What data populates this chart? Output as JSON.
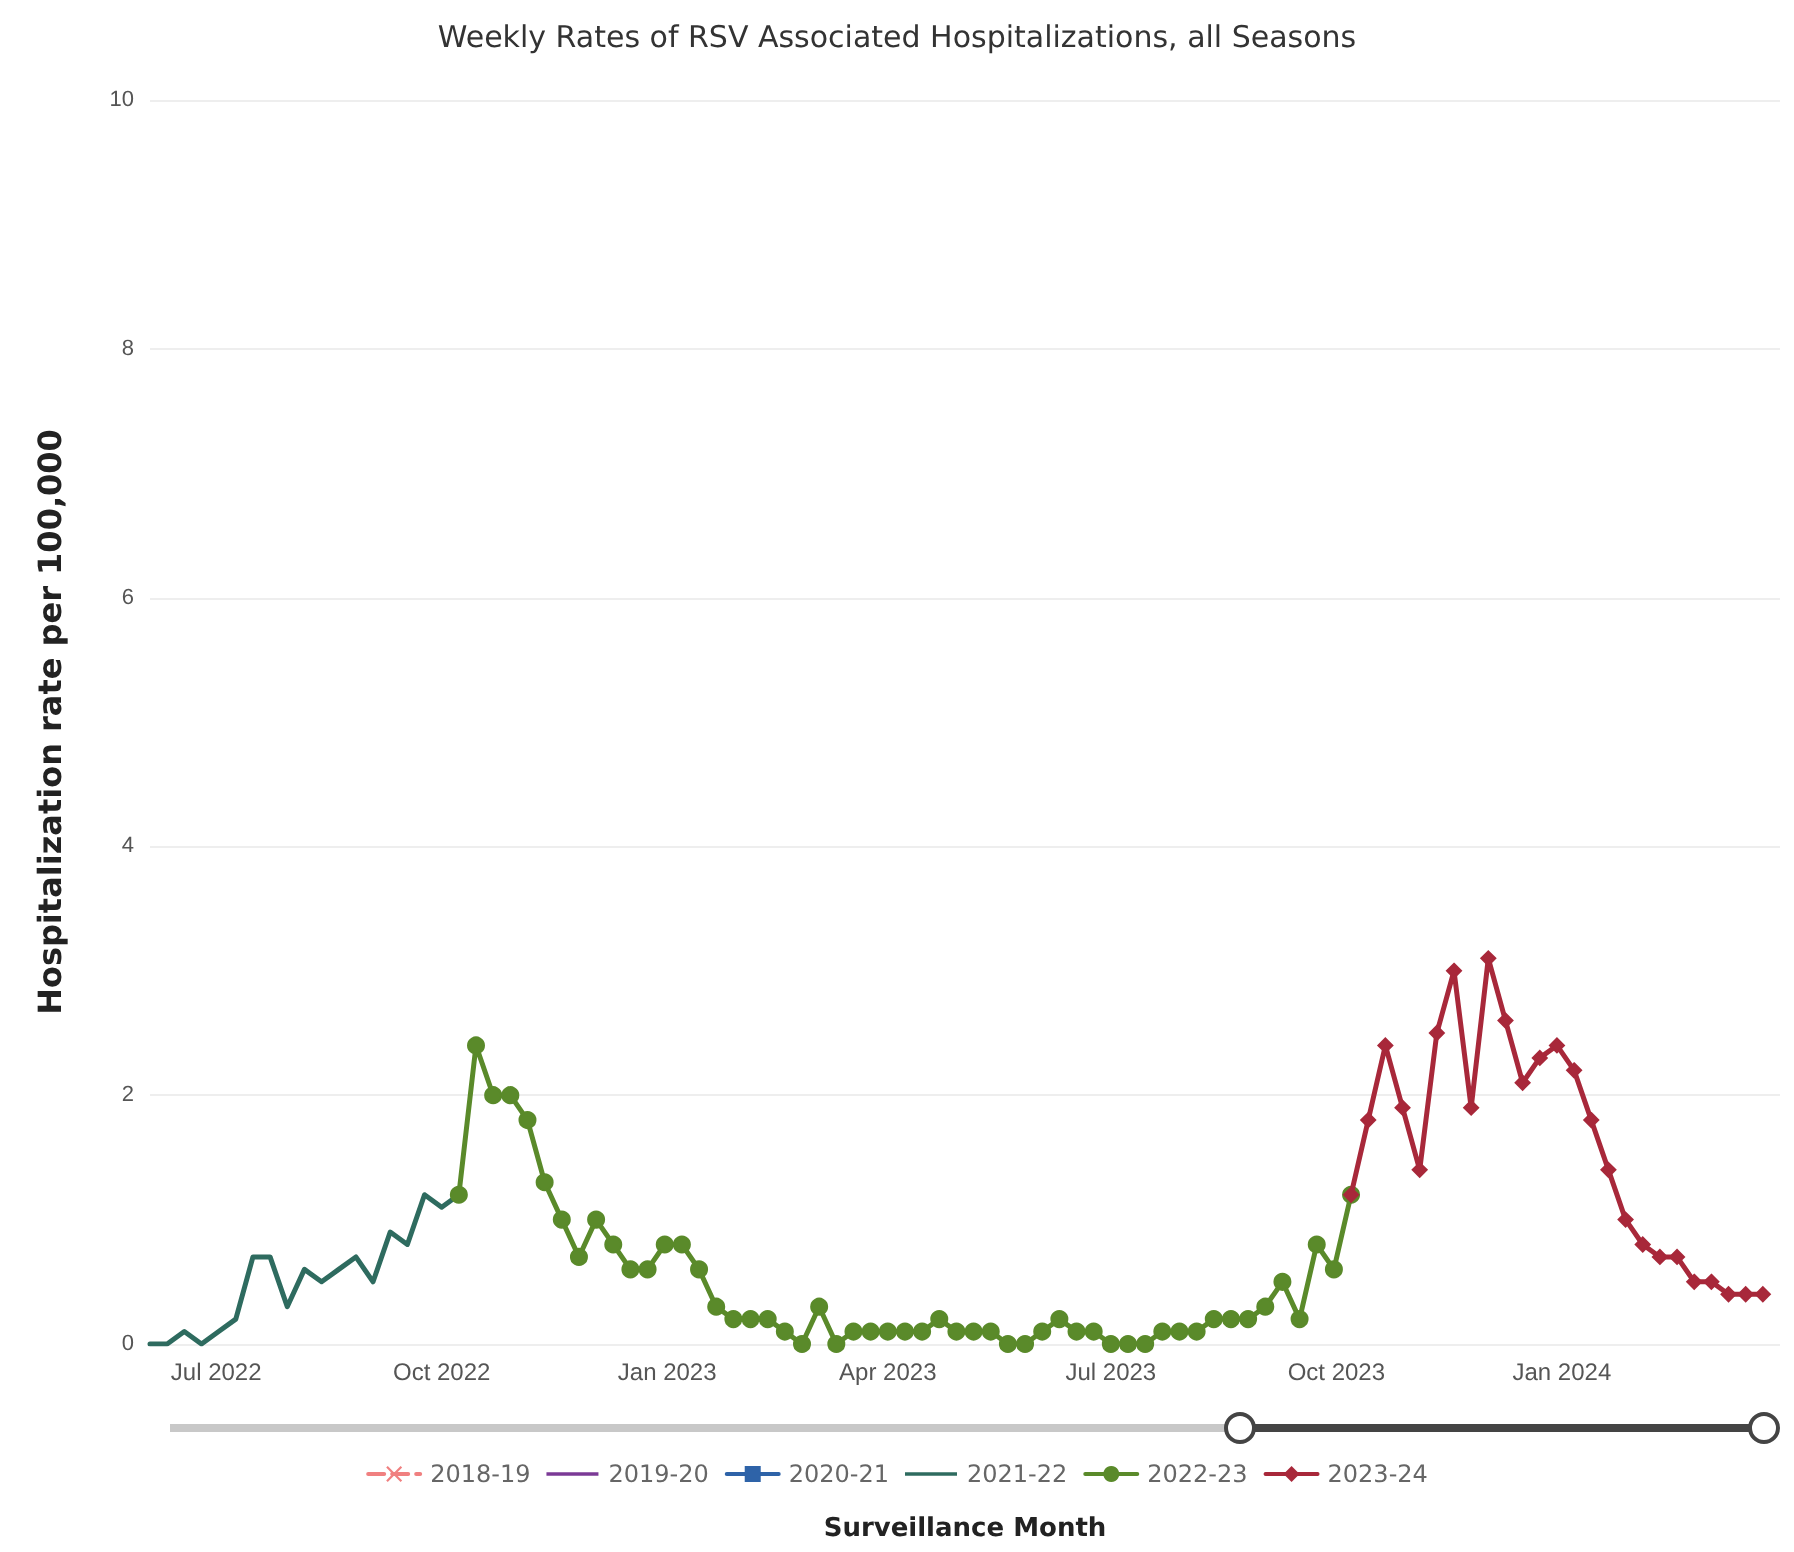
{
  "chart_data": {
    "type": "line",
    "title": "Weekly Rates of RSV Associated Hospitalizations, all Seasons",
    "xlabel": "Surveillance Month",
    "ylabel": "Hospitalization rate per 100,000",
    "xlim": [
      "2022-06-04",
      "2024-03-30"
    ],
    "xticks": [
      {
        "value": "2022-07-01",
        "label": "Jul 2022"
      },
      {
        "value": "2022-10-01",
        "label": "Oct 2022"
      },
      {
        "value": "2023-01-01",
        "label": "Jan 2023"
      },
      {
        "value": "2023-04-01",
        "label": "Apr 2023"
      },
      {
        "value": "2023-07-01",
        "label": "Jul 2023"
      },
      {
        "value": "2023-10-01",
        "label": "Oct 2023"
      },
      {
        "value": "2024-01-01",
        "label": "Jan 2024"
      }
    ],
    "ylim": [
      0,
      10
    ],
    "yticks": [
      0,
      2,
      4,
      6,
      8,
      10
    ],
    "grid": "y",
    "legend": "bottom",
    "series": [
      {
        "name": "2018-19",
        "color": "#f08080",
        "marker": "cross",
        "line_style": "dashed"
      },
      {
        "name": "2019-20",
        "color": "#7b3a96",
        "marker": "none",
        "line_style": "dotted"
      },
      {
        "name": "2020-21",
        "color": "#2e63a8",
        "marker": "square",
        "line_style": "solid"
      },
      {
        "name": "2021-22",
        "color": "#2e6b5f",
        "marker": "none",
        "line_style": "solid",
        "x": [
          "2022-06-04",
          "2022-06-11",
          "2022-06-18",
          "2022-06-25",
          "2022-07-02",
          "2022-07-09",
          "2022-07-16",
          "2022-07-23",
          "2022-07-30",
          "2022-08-06",
          "2022-08-13",
          "2022-08-20",
          "2022-08-27",
          "2022-09-03",
          "2022-09-10",
          "2022-09-17",
          "2022-09-24",
          "2022-10-01",
          "2022-10-08"
        ],
        "values": [
          0,
          0,
          0.1,
          0,
          0.1,
          0.2,
          0.7,
          0.7,
          0.3,
          0.6,
          0.5,
          0.6,
          0.7,
          0.5,
          0.9,
          0.8,
          1.2,
          1.1,
          1.2
        ]
      },
      {
        "name": "2022-23",
        "color": "#5a8a2a",
        "marker": "circle",
        "line_style": "solid",
        "x": [
          "2022-10-08",
          "2022-10-15",
          "2022-10-22",
          "2022-10-29",
          "2022-11-05",
          "2022-11-12",
          "2022-11-19",
          "2022-11-26",
          "2022-12-03",
          "2022-12-10",
          "2022-12-17",
          "2022-12-24",
          "2022-12-31",
          "2023-01-07",
          "2023-01-14",
          "2023-01-21",
          "2023-01-28",
          "2023-02-04",
          "2023-02-11",
          "2023-02-18",
          "2023-02-25",
          "2023-03-04",
          "2023-03-11",
          "2023-03-18",
          "2023-03-25",
          "2023-04-01",
          "2023-04-08",
          "2023-04-15",
          "2023-04-22",
          "2023-04-29",
          "2023-05-06",
          "2023-05-13",
          "2023-05-20",
          "2023-05-27",
          "2023-06-03",
          "2023-06-10",
          "2023-06-17",
          "2023-06-24",
          "2023-07-01",
          "2023-07-08",
          "2023-07-15",
          "2023-07-22",
          "2023-07-29",
          "2023-08-05",
          "2023-08-12",
          "2023-08-19",
          "2023-08-26",
          "2023-09-02",
          "2023-09-09",
          "2023-09-16",
          "2023-09-23",
          "2023-09-30",
          "2023-10-07"
        ],
        "values": [
          1.2,
          2.4,
          2.0,
          2.0,
          1.8,
          1.3,
          1.0,
          0.7,
          1.0,
          0.8,
          0.6,
          0.6,
          0.8,
          0.8,
          0.6,
          0.3,
          0.2,
          0.2,
          0.2,
          0.1,
          0,
          0.3,
          0,
          0.1,
          0.1,
          0.1,
          0.1,
          0.1,
          0.2,
          0.1,
          0.1,
          0.1,
          0,
          0,
          0.1,
          0.2,
          0.1,
          0.1,
          0,
          0,
          0,
          0.1,
          0.1,
          0.1,
          0.2,
          0.2,
          0.2,
          0.3,
          0.5,
          0.2,
          0.8,
          0.6,
          1.2
        ]
      },
      {
        "name": "2023-24",
        "color": "#a8283a",
        "marker": "diamond",
        "line_style": "solid",
        "x": [
          "2023-10-07",
          "2023-10-14",
          "2023-10-21",
          "2023-10-28",
          "2023-11-04",
          "2023-11-11",
          "2023-11-18",
          "2023-11-25",
          "2023-12-02",
          "2023-12-09",
          "2023-12-16",
          "2023-12-23",
          "2023-12-30",
          "2024-01-06",
          "2024-01-13",
          "2024-01-20",
          "2024-01-27",
          "2024-02-03",
          "2024-02-10",
          "2024-02-17",
          "2024-02-24",
          "2024-03-02",
          "2024-03-09",
          "2024-03-16",
          "2024-03-23"
        ],
        "values": [
          1.2,
          1.8,
          2.4,
          1.9,
          1.4,
          2.5,
          3.0,
          1.9,
          3.1,
          2.6,
          2.1,
          2.3,
          2.4,
          2.2,
          1.8,
          1.4,
          1.0,
          0.8,
          0.7,
          0.7,
          0.5,
          0.5,
          0.4,
          0.4,
          0.4
        ]
      }
    ]
  }
}
